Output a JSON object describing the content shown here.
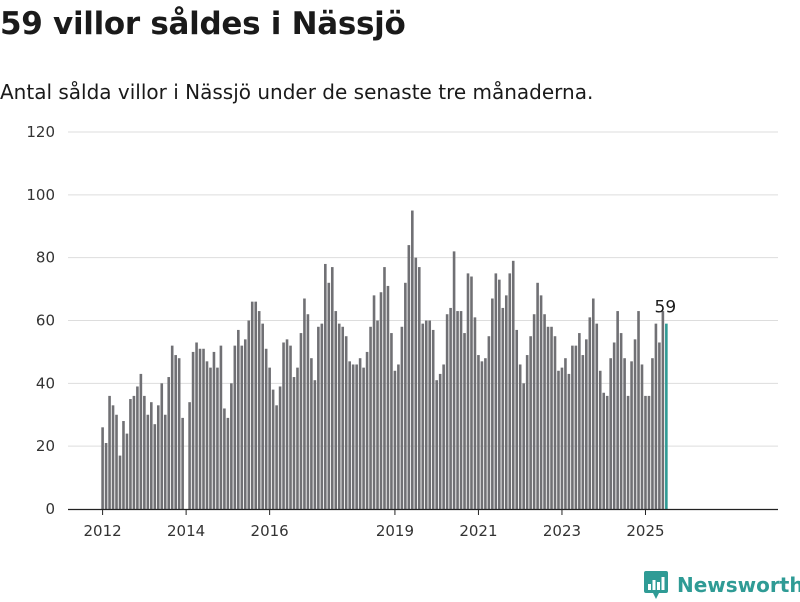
{
  "header": {
    "title": "59 villor såldes i Nässjö",
    "subtitle": "Antal sålda villor i Nässjö under de senaste tre månaderna."
  },
  "brand": {
    "name": "Newsworthy"
  },
  "colors": {
    "bar": "#707074",
    "highlight": "#2f9b95",
    "grid": "#dddddd",
    "axis": "#222222"
  },
  "chart_data": {
    "type": "bar",
    "title": "",
    "xlabel": "",
    "ylabel": "",
    "ylim": [
      0,
      120
    ],
    "grid": true,
    "legend": "none",
    "yticks": [
      "0",
      "20",
      "40",
      "60",
      "80",
      "100",
      "120"
    ],
    "xtick_labels": [
      "2012",
      "2014",
      "2016",
      "2019",
      "2021",
      "2023",
      "2025"
    ],
    "x_start": "2012-01",
    "x_end": "2025-07",
    "values": [
      26,
      21,
      36,
      33,
      30,
      17,
      28,
      24,
      35,
      36,
      39,
      43,
      36,
      30,
      34,
      27,
      33,
      40,
      30,
      42,
      52,
      49,
      48,
      29,
      null,
      34,
      50,
      53,
      51,
      51,
      47,
      45,
      50,
      45,
      52,
      32,
      29,
      40,
      52,
      57,
      52,
      54,
      60,
      66,
      66,
      63,
      59,
      51,
      45,
      38,
      33,
      39,
      53,
      54,
      52,
      42,
      45,
      56,
      67,
      62,
      48,
      41,
      58,
      59,
      78,
      72,
      77,
      63,
      59,
      58,
      55,
      47,
      46,
      46,
      48,
      45,
      50,
      58,
      68,
      60,
      69,
      77,
      71,
      56,
      44,
      46,
      58,
      72,
      84,
      95,
      80,
      77,
      59,
      60,
      60,
      57,
      41,
      43,
      46,
      62,
      64,
      82,
      63,
      63,
      56,
      75,
      74,
      61,
      49,
      47,
      48,
      55,
      67,
      75,
      73,
      64,
      68,
      75,
      79,
      57,
      46,
      40,
      49,
      55,
      62,
      72,
      68,
      62,
      58,
      58,
      55,
      44,
      45,
      48,
      43,
      52,
      52,
      56,
      49,
      54,
      61,
      67,
      59,
      44,
      37,
      36,
      48,
      53,
      63,
      56,
      48,
      36,
      47,
      54,
      63,
      46,
      36,
      36,
      48,
      59,
      53,
      63,
      59
    ],
    "highlight": {
      "x": "2025-07",
      "value": 59,
      "label": "59"
    }
  }
}
